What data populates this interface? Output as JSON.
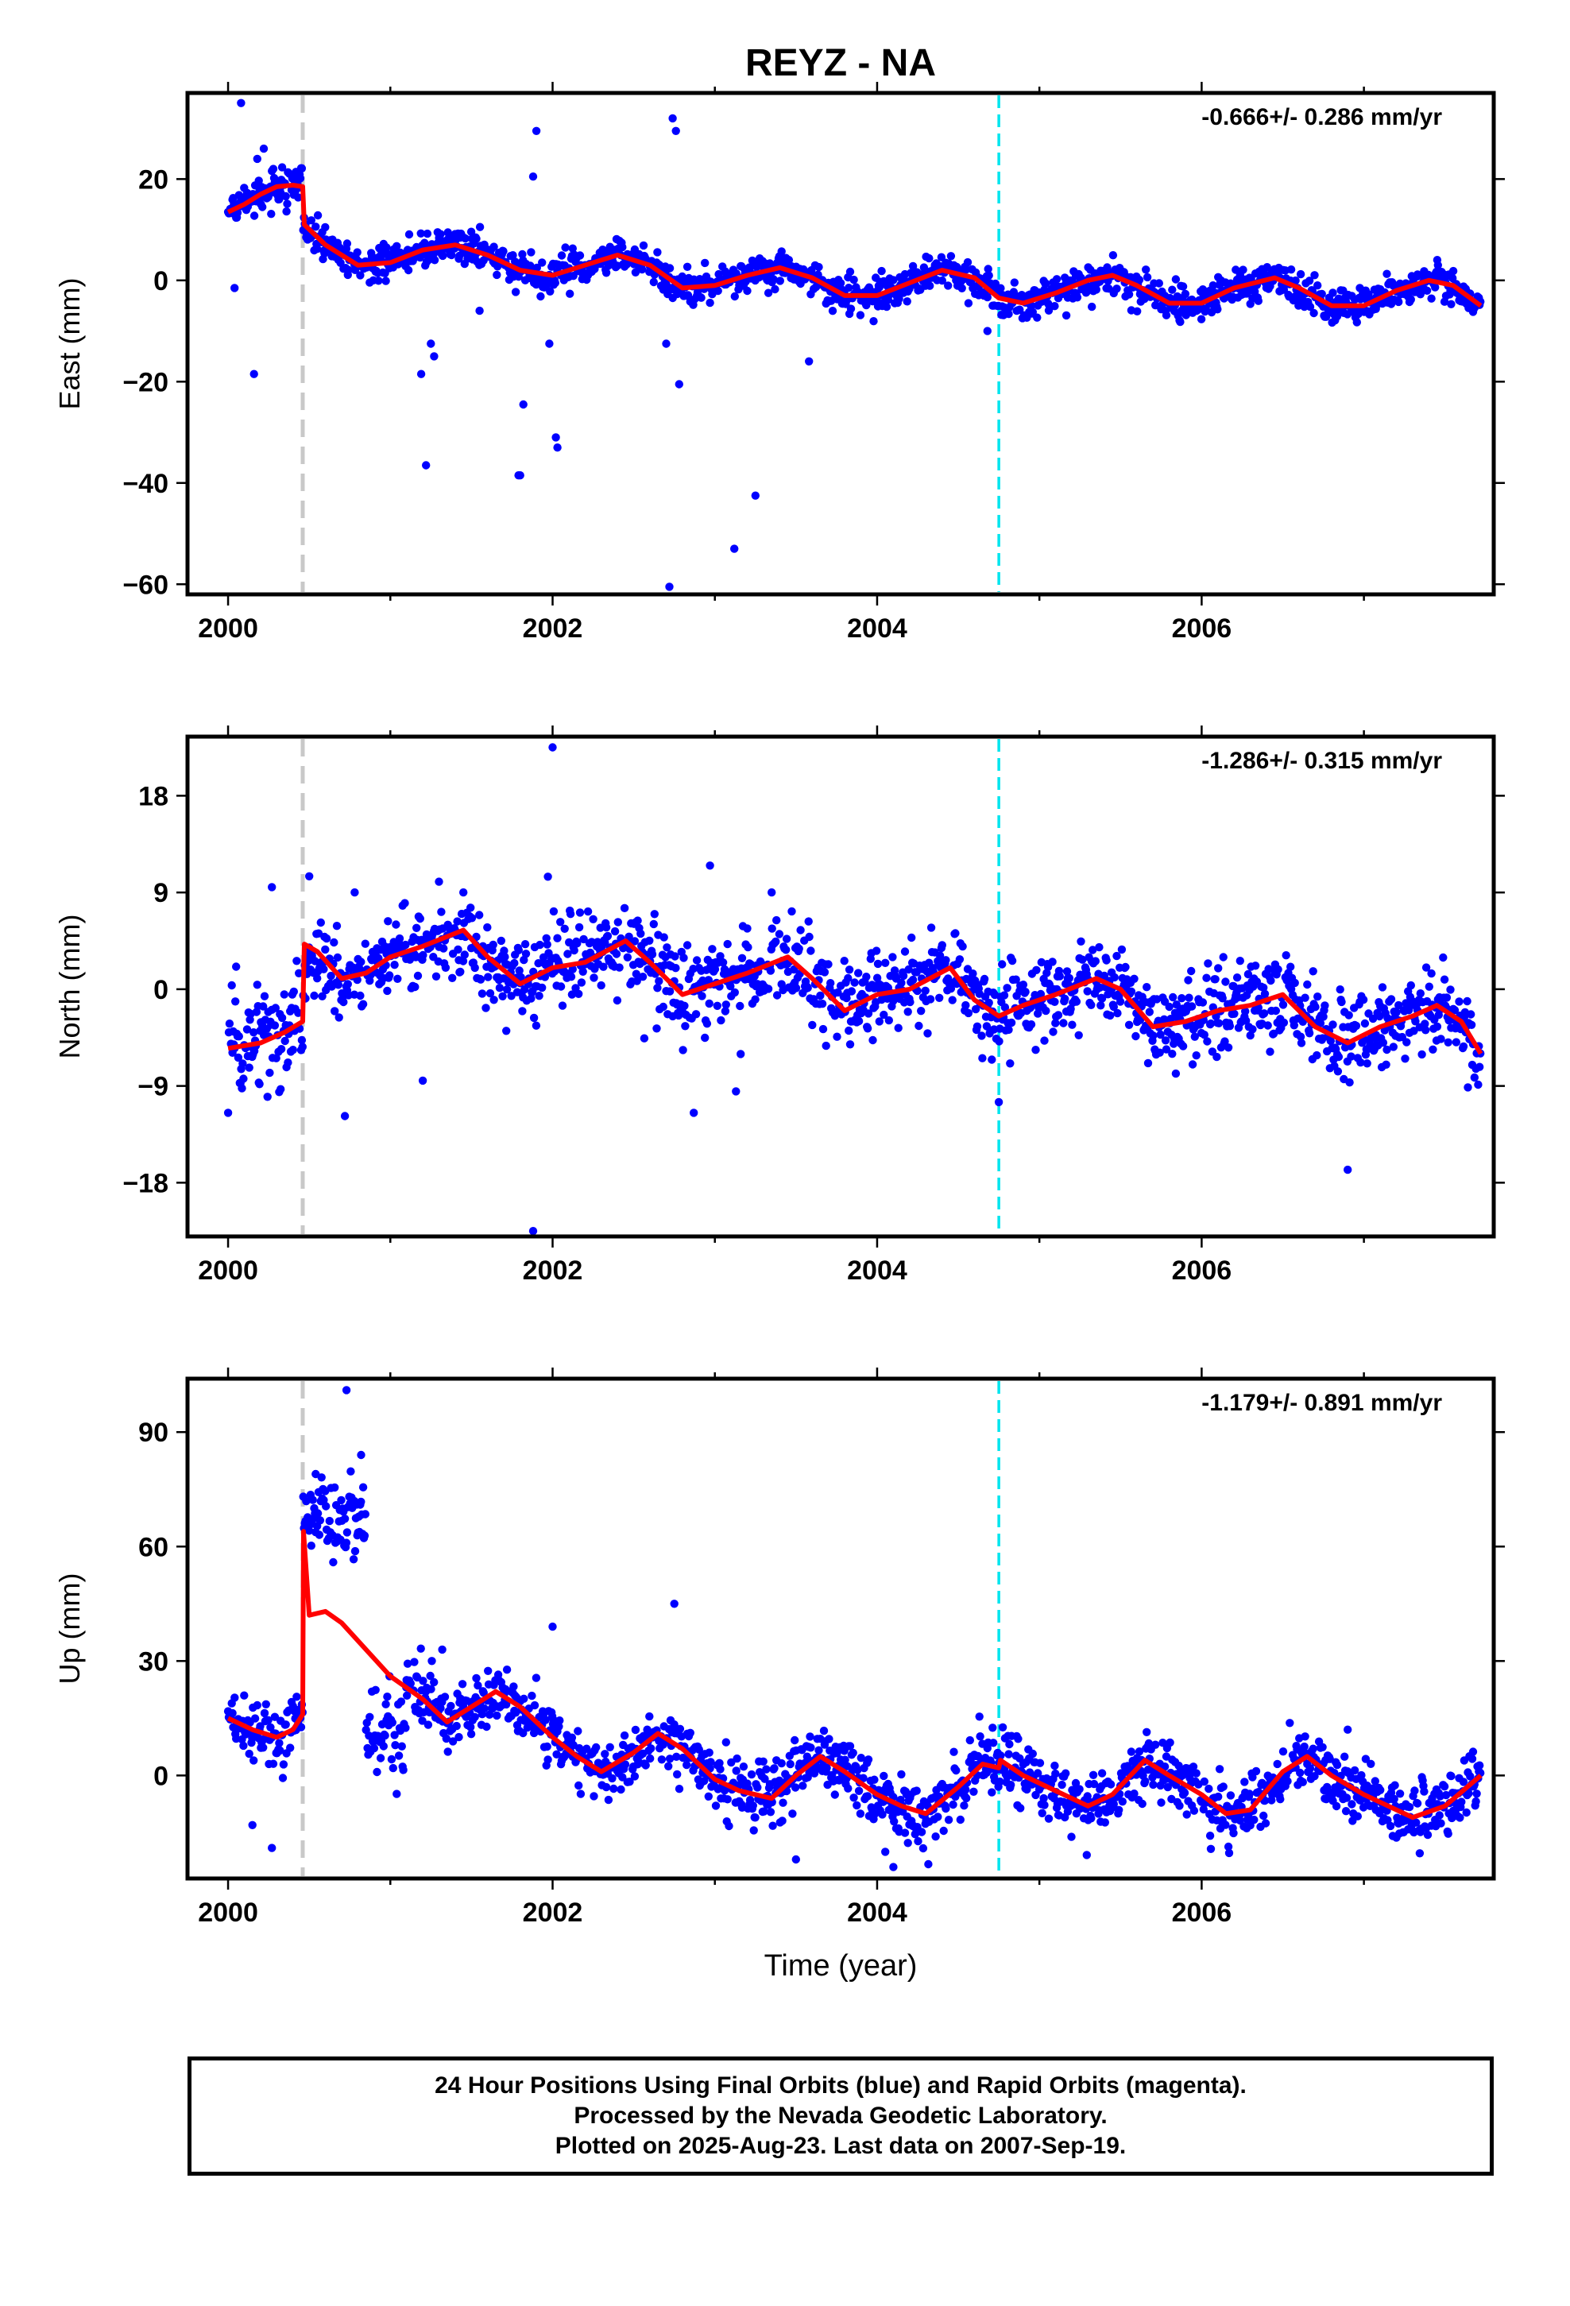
{
  "title": "REYZ - NA",
  "footer": {
    "line1": "24 Hour Positions Using Final Orbits (blue) and Rapid Orbits (magenta).",
    "line2": "Processed by the Nevada Geodetic Laboratory.",
    "line3": "Plotted on 2025-Aug-23. Last data on 2007-Sep-19."
  },
  "colors": {
    "points": "#0000ff",
    "model": "#ff0000",
    "event_gray": "#c8c8c8",
    "event_cyan": "#00e5ee"
  },
  "chart_data": [
    {
      "type": "scatter",
      "ylabel": "East (mm)",
      "xlabel": "",
      "rate_text": "-0.666+/- 0.286 mm/yr",
      "xlim": [
        1999.75,
        2007.8
      ],
      "ylim": [
        -62,
        37
      ],
      "xticks": [
        2000,
        2002,
        2004,
        2006
      ],
      "xtick_labels": [
        "2000",
        "2002",
        "2004",
        "2006"
      ],
      "yticks": [
        -60,
        -40,
        -20,
        0,
        20
      ],
      "ytick_labels": [
        "−60",
        "−40",
        "−20",
        "0",
        "20"
      ],
      "event_lines": [
        {
          "x": 2000.46,
          "color": "gray"
        },
        {
          "x": 2004.75,
          "color": "cyan"
        }
      ],
      "series": [
        {
          "kind": "model",
          "x": [
            2000.0,
            2000.1,
            2000.2,
            2000.3,
            2000.4,
            2000.46,
            2000.47,
            2000.6,
            2000.8,
            2001.0,
            2001.2,
            2001.4,
            2001.6,
            2001.8,
            2002.0,
            2002.2,
            2002.4,
            2002.6,
            2002.8,
            2003.0,
            2003.2,
            2003.4,
            2003.6,
            2003.8,
            2004.0,
            2004.2,
            2004.4,
            2004.6,
            2004.75,
            2004.9,
            2005.1,
            2005.3,
            2005.45,
            2005.6,
            2005.8,
            2006.0,
            2006.2,
            2006.45,
            2006.6,
            2006.8,
            2007.0,
            2007.2,
            2007.4,
            2007.55,
            2007.72
          ],
          "y": [
            13.5,
            15,
            17,
            18.5,
            18.8,
            18.5,
            11,
            7,
            3,
            3.5,
            6,
            7,
            5,
            2,
            1,
            3,
            5,
            3,
            -1.5,
            -1,
            1,
            2.5,
            0.5,
            -3,
            -3,
            -0.5,
            2,
            0.5,
            -3.5,
            -4.5,
            -2.5,
            0,
            1,
            -1,
            -4.5,
            -4.5,
            -1.5,
            0.5,
            -1.5,
            -5,
            -5,
            -2,
            0,
            -1,
            -5
          ]
        },
        {
          "kind": "outliers",
          "x": [
            2000.04,
            2000.16,
            2000.08,
            2000.22,
            2000.18,
            2001.22,
            2001.25,
            2001.19,
            2001.27,
            2001.55,
            2001.8,
            2001.82,
            2001.79,
            2001.9,
            2001.88,
            2001.98,
            2002.03,
            2002.02,
            2002.7,
            2002.74,
            2002.76,
            2002.72,
            2002.78,
            2003.12,
            2003.25,
            2003.58,
            2004.68
          ],
          "y": [
            -1.5,
            -18.5,
            35,
            26,
            24,
            -36.5,
            -12.5,
            -18.5,
            -15,
            -6,
            -38.5,
            -24.5,
            -38.5,
            29.5,
            20.5,
            -12.5,
            -33,
            -31,
            -12.5,
            32,
            29.5,
            -60.5,
            -20.5,
            -53,
            -42.5,
            -16,
            -10
          ]
        }
      ]
    },
    {
      "type": "scatter",
      "ylabel": "North (mm)",
      "xlabel": "",
      "rate_text": "-1.286+/- 0.315 mm/yr",
      "xlim": [
        1999.75,
        2007.8
      ],
      "ylim": [
        -23,
        23.5
      ],
      "xticks": [
        2000,
        2002,
        2004,
        2006
      ],
      "xtick_labels": [
        "2000",
        "2002",
        "2004",
        "2006"
      ],
      "yticks": [
        -18,
        -9,
        0,
        9,
        18
      ],
      "ytick_labels": [
        "−18",
        "−9",
        "0",
        "9",
        "18"
      ],
      "event_lines": [
        {
          "x": 2000.46,
          "color": "gray"
        },
        {
          "x": 2004.75,
          "color": "cyan"
        }
      ],
      "series": [
        {
          "kind": "model",
          "x": [
            2000.0,
            2000.2,
            2000.35,
            2000.46,
            2000.47,
            2000.55,
            2000.7,
            2000.85,
            2001.0,
            2001.2,
            2001.45,
            2001.6,
            2001.8,
            2002.0,
            2002.2,
            2002.45,
            2002.6,
            2002.8,
            2003.0,
            2003.2,
            2003.45,
            2003.6,
            2003.8,
            2004.0,
            2004.2,
            2004.45,
            2004.6,
            2004.75,
            2004.9,
            2005.1,
            2005.35,
            2005.5,
            2005.7,
            2005.9,
            2006.1,
            2006.3,
            2006.5,
            2006.7,
            2006.9,
            2007.1,
            2007.3,
            2007.45,
            2007.6,
            2007.72
          ],
          "y": [
            -5.5,
            -5,
            -4,
            -3,
            4.2,
            3.5,
            1,
            1.5,
            3,
            4,
            5.5,
            3,
            0.5,
            2,
            2.5,
            4.5,
            2.5,
            -0.5,
            0.5,
            1.5,
            3,
            1,
            -2,
            -0.5,
            0,
            2,
            -1,
            -2.5,
            -1.5,
            -0.5,
            1,
            0,
            -3.5,
            -3,
            -2,
            -1.5,
            -0.5,
            -3.5,
            -5,
            -3.5,
            -2.5,
            -1.5,
            -3,
            -6
          ]
        },
        {
          "kind": "outliers",
          "x": [
            2000.0,
            2000.27,
            2000.5,
            2000.72,
            2000.78,
            2001.2,
            2001.3,
            2002.0,
            2001.88,
            2002.87,
            2002.97,
            2003.13,
            2004.75,
            2006.9,
            2003.35,
            2001.45
          ],
          "y": [
            -11.5,
            9.5,
            10.5,
            -11.8,
            9,
            -8.5,
            10,
            22.5,
            -22.5,
            -11.5,
            11.5,
            -9.5,
            -10.5,
            -16.8,
            9,
            9
          ]
        }
      ]
    },
    {
      "type": "scatter",
      "ylabel": "Up (mm)",
      "xlabel": "Time (year)",
      "rate_text": "-1.179+/- 0.891 mm/yr",
      "xlim": [
        1999.75,
        2007.8
      ],
      "ylim": [
        -27,
        104
      ],
      "xticks": [
        2000,
        2002,
        2004,
        2006
      ],
      "xtick_labels": [
        "2000",
        "2002",
        "2004",
        "2006"
      ],
      "yticks": [
        0,
        30,
        60,
        90
      ],
      "ytick_labels": [
        "0",
        "30",
        "60",
        "90"
      ],
      "event_lines": [
        {
          "x": 2000.46,
          "color": "gray"
        },
        {
          "x": 2004.75,
          "color": "cyan"
        }
      ],
      "series": [
        {
          "kind": "model",
          "x": [
            2000.0,
            2000.15,
            2000.3,
            2000.4,
            2000.46,
            2000.465,
            2000.5,
            2000.6,
            2000.7,
            2000.85,
            2001.0,
            2001.2,
            2001.35,
            2001.5,
            2001.65,
            2001.8,
            2002.0,
            2002.15,
            2002.3,
            2002.5,
            2002.65,
            2002.8,
            2003.0,
            2003.15,
            2003.35,
            2003.5,
            2003.65,
            2003.8,
            2004.0,
            2004.15,
            2004.3,
            2004.5,
            2004.65,
            2004.75,
            2004.76,
            2004.9,
            2005.1,
            2005.3,
            2005.45,
            2005.65,
            2005.8,
            2006.0,
            2006.15,
            2006.3,
            2006.5,
            2006.65,
            2006.8,
            2007.0,
            2007.15,
            2007.3,
            2007.5,
            2007.72
          ],
          "y": [
            15,
            12,
            10,
            12,
            16,
            64,
            42,
            43,
            40,
            33,
            26,
            20,
            14,
            18,
            22,
            18,
            10,
            5,
            1,
            6,
            11,
            7,
            -1,
            -4,
            -6,
            0,
            5,
            1,
            -5,
            -8,
            -10,
            -3,
            3,
            2,
            4,
            0,
            -4,
            -8,
            -5,
            4,
            0,
            -5,
            -10,
            -9,
            1,
            5,
            0,
            -5,
            -8,
            -11,
            -8,
            0
          ]
        },
        {
          "kind": "outliers",
          "x": [
            2000.73,
            2000.54,
            2000.82,
            2002.75,
            2001.32,
            2000.27,
            2000.15,
            2002.0,
            2003.5,
            2004.1,
            2004.05,
            2006.9,
            2001.1
          ],
          "y": [
            101,
            79,
            84,
            45,
            33,
            -19,
            -13,
            39,
            -22,
            -24,
            -20,
            12,
            25
          ]
        }
      ]
    }
  ]
}
